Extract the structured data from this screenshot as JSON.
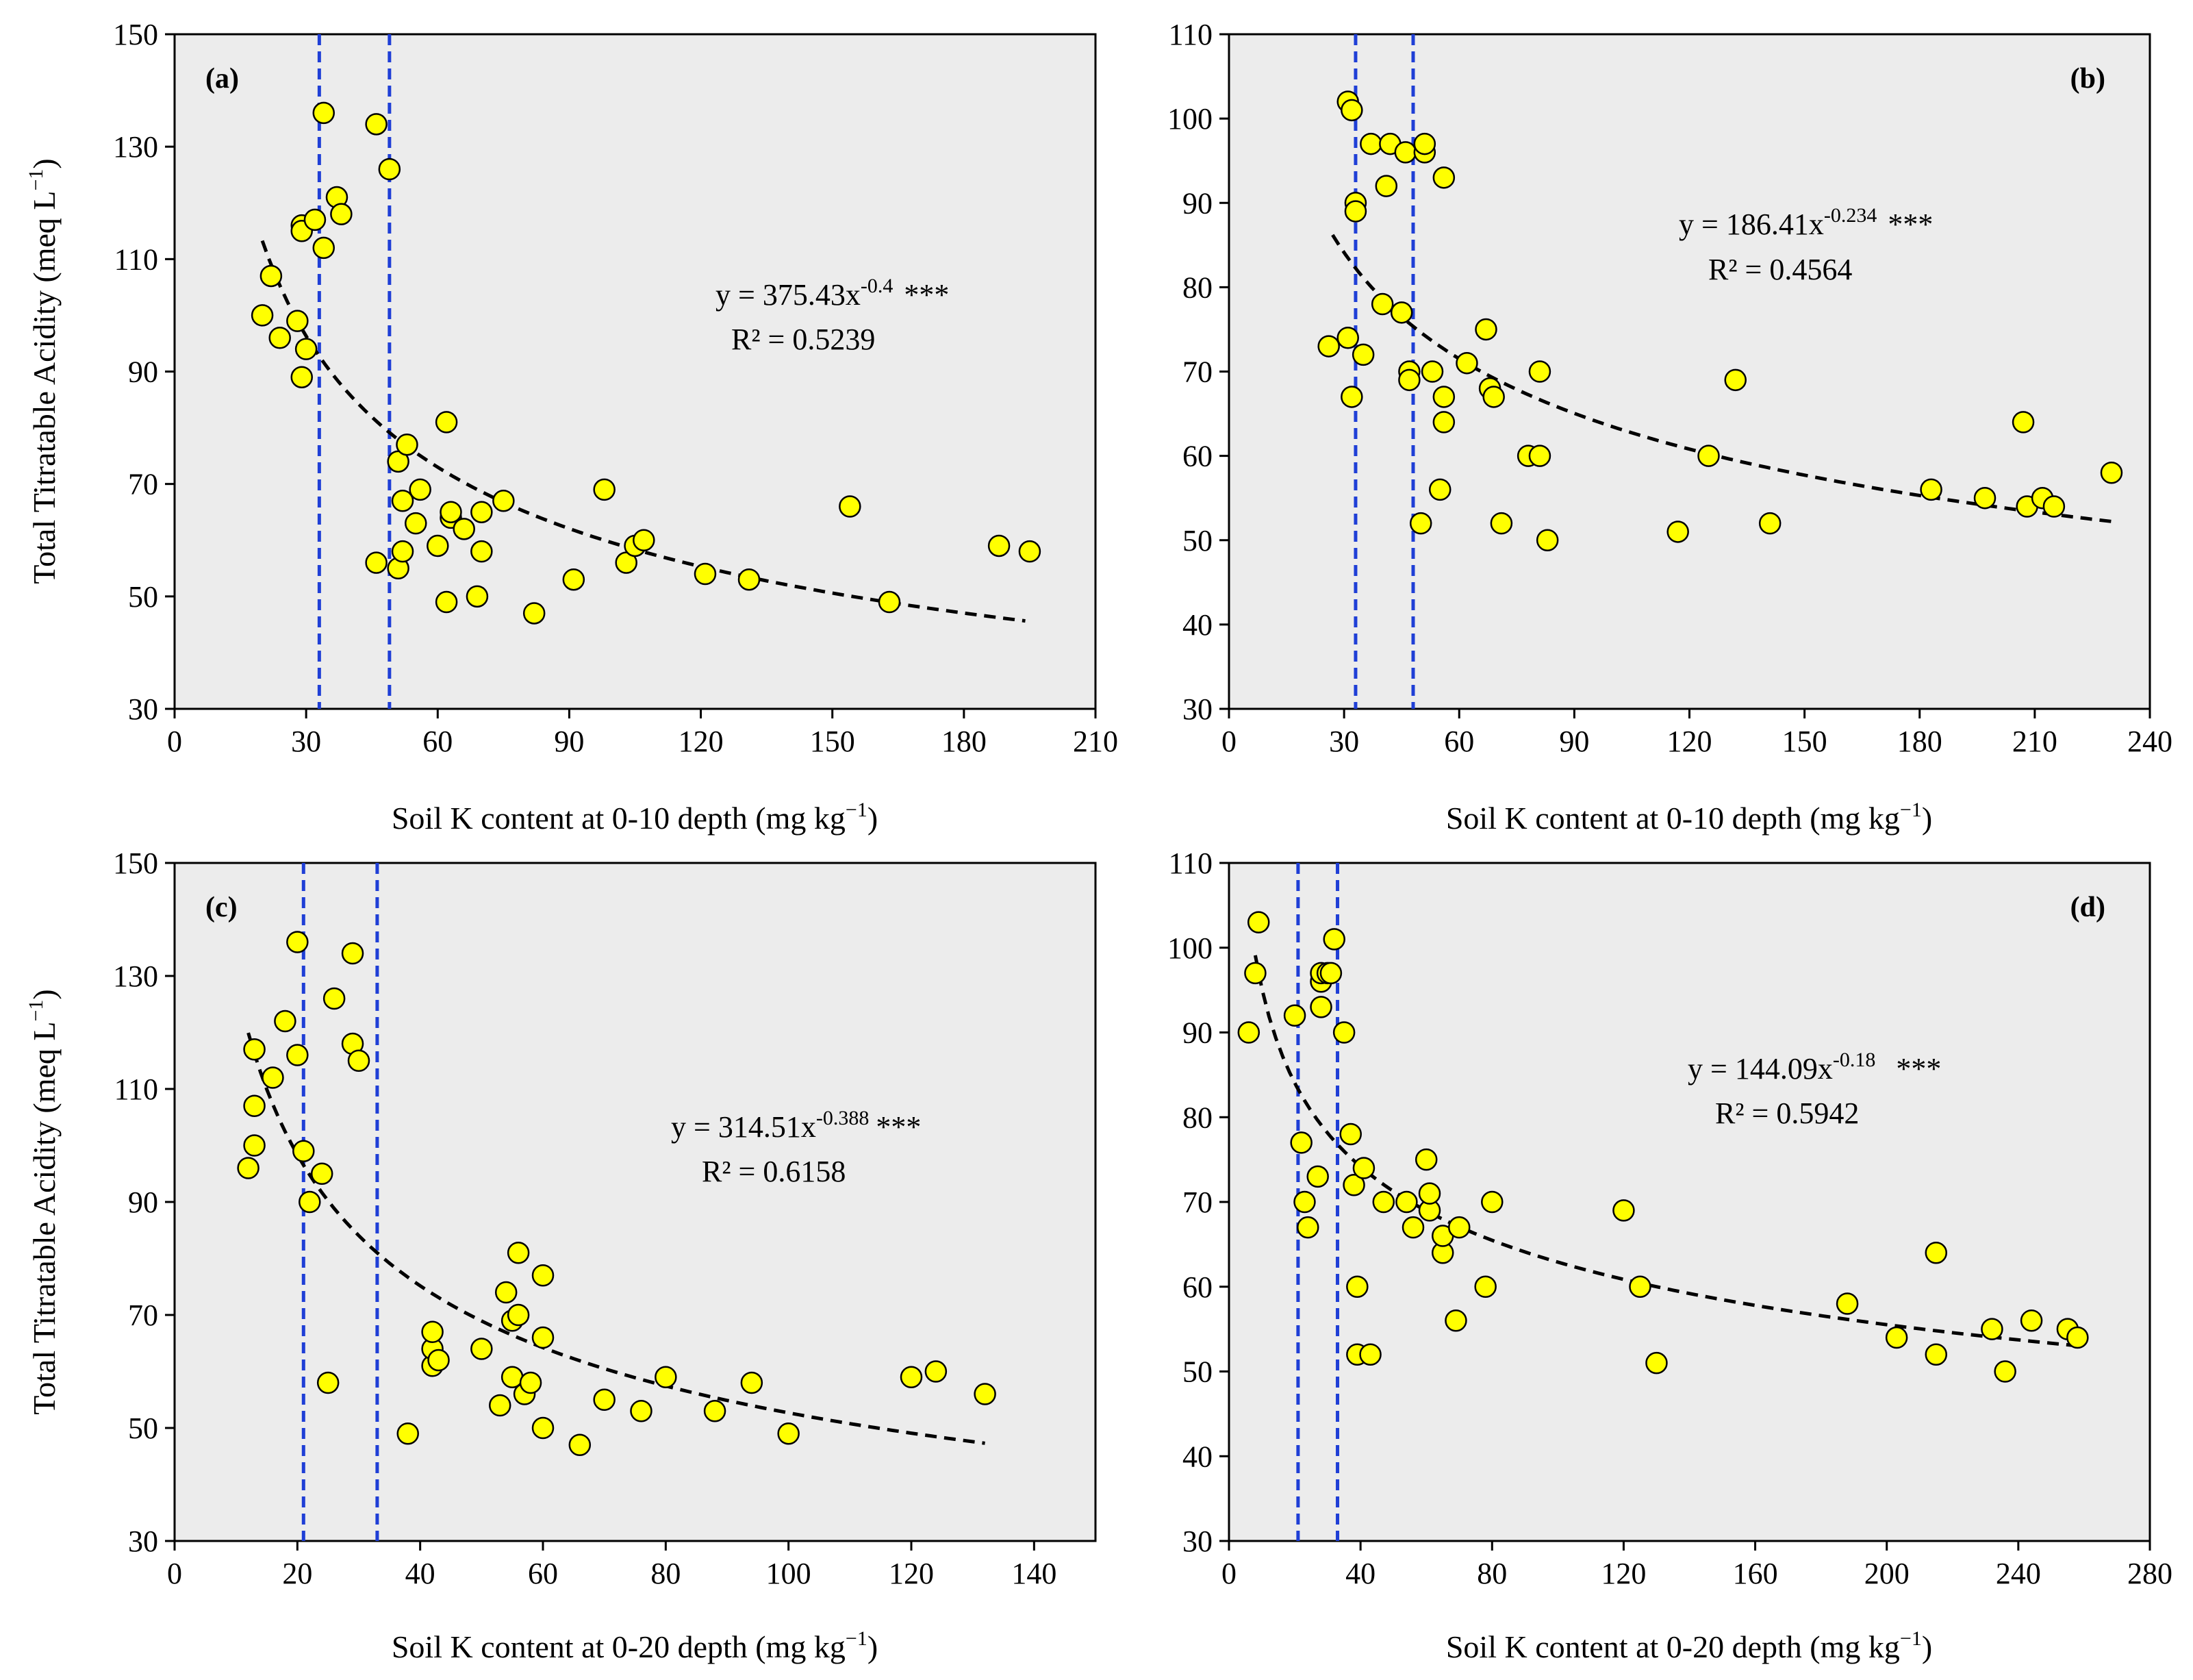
{
  "chart_data": [
    {
      "type": "scatter",
      "panel_label": "(a)",
      "xlabel": "Soil K content at 0-10 depth (mg kg",
      "xlabel_sup": "−1",
      "xlabel_end": ")",
      "ylabel": "Total Titratable Acidity (meq L",
      "ylabel_sup": "−1",
      "ylabel_end": ")",
      "xlim": [
        0,
        210
      ],
      "ylim": [
        30,
        150
      ],
      "xticks": [
        0,
        30,
        60,
        90,
        120,
        150,
        180,
        210
      ],
      "yticks": [
        30,
        50,
        70,
        90,
        110,
        130,
        150
      ],
      "vlines": [
        33,
        49
      ],
      "fit": {
        "a": 375.43,
        "b": -0.4,
        "x_range": [
          20,
          194
        ]
      },
      "equation": {
        "prefix": "y = 375.43x",
        "exponent": "-0.4",
        "stars": "***",
        "r2": "R² = 0.5239"
      },
      "points": [
        [
          20,
          100
        ],
        [
          22,
          107
        ],
        [
          24,
          96
        ],
        [
          28,
          99
        ],
        [
          29,
          116
        ],
        [
          29,
          115
        ],
        [
          29,
          89
        ],
        [
          30,
          94
        ],
        [
          32,
          117
        ],
        [
          34,
          136
        ],
        [
          34,
          112
        ],
        [
          37,
          121
        ],
        [
          38,
          118
        ],
        [
          46,
          134
        ],
        [
          46,
          56
        ],
        [
          49,
          126
        ],
        [
          51,
          55
        ],
        [
          51,
          74
        ],
        [
          52,
          67
        ],
        [
          52,
          58
        ],
        [
          53,
          77
        ],
        [
          55,
          63
        ],
        [
          56,
          69
        ],
        [
          60,
          59
        ],
        [
          62,
          49
        ],
        [
          62,
          81
        ],
        [
          63,
          64
        ],
        [
          63,
          65
        ],
        [
          66,
          62
        ],
        [
          69,
          50
        ],
        [
          70,
          58
        ],
        [
          70,
          65
        ],
        [
          75,
          67
        ],
        [
          82,
          47
        ],
        [
          91,
          53
        ],
        [
          98,
          69
        ],
        [
          103,
          56
        ],
        [
          105,
          59
        ],
        [
          107,
          60
        ],
        [
          121,
          54
        ],
        [
          131,
          53
        ],
        [
          154,
          66
        ],
        [
          163,
          49
        ],
        [
          188,
          59
        ],
        [
          195,
          58
        ]
      ]
    },
    {
      "type": "scatter",
      "panel_label": "(b)",
      "xlabel": "Soil K content at 0-10 depth (mg kg",
      "xlabel_sup": "−1",
      "xlabel_end": ")",
      "ylabel": "",
      "ylabel_sup": "",
      "ylabel_end": "",
      "xlim": [
        0,
        240
      ],
      "ylim": [
        30,
        110
      ],
      "xticks": [
        0,
        30,
        60,
        90,
        120,
        150,
        180,
        210,
        240
      ],
      "yticks": [
        30,
        40,
        50,
        60,
        70,
        80,
        90,
        100,
        110
      ],
      "vlines": [
        33,
        48
      ],
      "fit": {
        "a": 186.41,
        "b": -0.234,
        "x_range": [
          27,
          230
        ]
      },
      "equation": {
        "prefix": "y = 186.41x",
        "exponent": "-0.234",
        "stars": "***",
        "r2": "R² = 0.4564"
      },
      "points": [
        [
          26,
          73
        ],
        [
          31,
          74
        ],
        [
          31,
          102
        ],
        [
          32,
          67
        ],
        [
          32,
          101
        ],
        [
          33,
          90
        ],
        [
          33,
          89
        ],
        [
          35,
          72
        ],
        [
          37,
          97
        ],
        [
          40,
          78
        ],
        [
          41,
          92
        ],
        [
          42,
          97
        ],
        [
          45,
          77
        ],
        [
          46,
          96
        ],
        [
          47,
          70
        ],
        [
          47,
          69
        ],
        [
          50,
          52
        ],
        [
          51,
          96
        ],
        [
          51,
          97
        ],
        [
          53,
          70
        ],
        [
          55,
          56
        ],
        [
          56,
          64
        ],
        [
          56,
          67
        ],
        [
          56,
          93
        ],
        [
          62,
          71
        ],
        [
          67,
          75
        ],
        [
          68,
          68
        ],
        [
          69,
          67
        ],
        [
          71,
          52
        ],
        [
          78,
          60
        ],
        [
          81,
          60
        ],
        [
          81,
          70
        ],
        [
          83,
          50
        ],
        [
          117,
          51
        ],
        [
          125,
          60
        ],
        [
          132,
          69
        ],
        [
          141,
          52
        ],
        [
          183,
          56
        ],
        [
          197,
          55
        ],
        [
          207,
          64
        ],
        [
          208,
          54
        ],
        [
          212,
          55
        ],
        [
          215,
          54
        ],
        [
          230,
          58
        ]
      ]
    },
    {
      "type": "scatter",
      "panel_label": "(c)",
      "xlabel": "Soil K content at 0-20 depth (mg kg",
      "xlabel_sup": "−1",
      "xlabel_end": ")",
      "ylabel": "Total Titratable Acidity (meq L",
      "ylabel_sup": "−1",
      "ylabel_end": ")",
      "xlim": [
        0,
        150
      ],
      "ylim": [
        30,
        150
      ],
      "xticks": [
        0,
        20,
        40,
        60,
        80,
        100,
        120,
        140
      ],
      "yticks": [
        30,
        50,
        70,
        90,
        110,
        130,
        150
      ],
      "vlines": [
        21,
        33
      ],
      "fit": {
        "a": 314.51,
        "b": -0.388,
        "x_range": [
          12,
          132
        ]
      },
      "equation": {
        "prefix": "y = 314.51x",
        "exponent": "-0.388",
        "stars": "***",
        "r2": "R² = 0.6158"
      },
      "points": [
        [
          12,
          96
        ],
        [
          13,
          117
        ],
        [
          13,
          107
        ],
        [
          13,
          100
        ],
        [
          16,
          112
        ],
        [
          18,
          122
        ],
        [
          20,
          136
        ],
        [
          20,
          116
        ],
        [
          21,
          99
        ],
        [
          22,
          90
        ],
        [
          24,
          95
        ],
        [
          25,
          58
        ],
        [
          26,
          126
        ],
        [
          29,
          134
        ],
        [
          29,
          118
        ],
        [
          30,
          115
        ],
        [
          38,
          49
        ],
        [
          42,
          61
        ],
        [
          42,
          64
        ],
        [
          42,
          67
        ],
        [
          43,
          62
        ],
        [
          50,
          64
        ],
        [
          53,
          54
        ],
        [
          54,
          74
        ],
        [
          55,
          69
        ],
        [
          55,
          59
        ],
        [
          56,
          81
        ],
        [
          56,
          70
        ],
        [
          57,
          56
        ],
        [
          58,
          58
        ],
        [
          60,
          66
        ],
        [
          60,
          50
        ],
        [
          60,
          77
        ],
        [
          66,
          47
        ],
        [
          70,
          55
        ],
        [
          76,
          53
        ],
        [
          80,
          59
        ],
        [
          88,
          53
        ],
        [
          94,
          58
        ],
        [
          100,
          49
        ],
        [
          120,
          59
        ],
        [
          124,
          60
        ],
        [
          132,
          56
        ]
      ]
    },
    {
      "type": "scatter",
      "panel_label": "(d)",
      "xlabel": "Soil K content at 0-20 depth (mg kg",
      "xlabel_sup": "−1",
      "xlabel_end": ")",
      "ylabel": "",
      "ylabel_sup": "",
      "ylabel_end": "",
      "xlim": [
        0,
        280
      ],
      "ylim": [
        30,
        110
      ],
      "xticks": [
        0,
        40,
        80,
        120,
        160,
        200,
        240,
        280
      ],
      "yticks": [
        30,
        40,
        50,
        60,
        70,
        80,
        90,
        100,
        110
      ],
      "vlines": [
        21,
        33
      ],
      "fit": {
        "a": 144.09,
        "b": -0.18,
        "x_range": [
          8,
          258
        ]
      },
      "equation": {
        "prefix": "y = 144.09x",
        "exponent": "-0.18",
        "stars": "***",
        "r2": "R² = 0.5942"
      },
      "points": [
        [
          6,
          90
        ],
        [
          8,
          97
        ],
        [
          9,
          103
        ],
        [
          20,
          92
        ],
        [
          22,
          77
        ],
        [
          23,
          70
        ],
        [
          24,
          67
        ],
        [
          27,
          73
        ],
        [
          28,
          96
        ],
        [
          28,
          97
        ],
        [
          28,
          93
        ],
        [
          30,
          97
        ],
        [
          31,
          97
        ],
        [
          32,
          101
        ],
        [
          35,
          90
        ],
        [
          37,
          78
        ],
        [
          38,
          72
        ],
        [
          39,
          60
        ],
        [
          39,
          52
        ],
        [
          41,
          74
        ],
        [
          43,
          52
        ],
        [
          47,
          70
        ],
        [
          54,
          70
        ],
        [
          56,
          67
        ],
        [
          60,
          75
        ],
        [
          61,
          69
        ],
        [
          61,
          71
        ],
        [
          65,
          64
        ],
        [
          65,
          66
        ],
        [
          69,
          56
        ],
        [
          70,
          67
        ],
        [
          78,
          60
        ],
        [
          80,
          70
        ],
        [
          120,
          69
        ],
        [
          125,
          60
        ],
        [
          130,
          51
        ],
        [
          188,
          58
        ],
        [
          203,
          54
        ],
        [
          215,
          52
        ],
        [
          215,
          64
        ],
        [
          232,
          55
        ],
        [
          236,
          50
        ],
        [
          244,
          56
        ],
        [
          255,
          55
        ],
        [
          258,
          54
        ]
      ]
    }
  ]
}
